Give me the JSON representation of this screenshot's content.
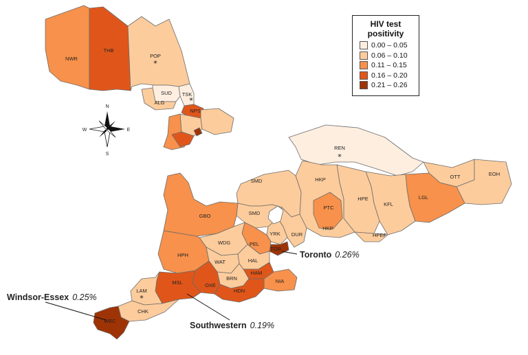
{
  "legend": {
    "title_line1": "HIV test",
    "title_line2": "positivity",
    "classes": [
      {
        "label": "0.00 – 0.05",
        "color": "#fdeee0"
      },
      {
        "label": "0.06 – 0.10",
        "color": "#fdcc9c"
      },
      {
        "label": "0.11 – 0.15",
        "color": "#f7914b"
      },
      {
        "label": "0.16 – 0.20",
        "color": "#e0561a"
      },
      {
        "label": "0.21 – 0.26",
        "color": "#9e3306"
      }
    ]
  },
  "compass": {
    "n": "N",
    "s": "S",
    "e": "E",
    "w": "W",
    "icon": "compass-rose-icon"
  },
  "regions": [
    {
      "code": "NWR",
      "class": 2
    },
    {
      "code": "THB",
      "class": 3
    },
    {
      "code": "POP",
      "class": 1,
      "star": true
    },
    {
      "code": "SUD",
      "class": 0
    },
    {
      "code": "TSK",
      "class": 0,
      "star": true
    },
    {
      "code": "ALG",
      "class": 1
    },
    {
      "code": "NPS",
      "class": 3
    },
    {
      "code": "REN",
      "class": 0,
      "star": true
    },
    {
      "code": "OTT",
      "class": 1
    },
    {
      "code": "EOH",
      "class": 1
    },
    {
      "code": "LGL",
      "class": 2
    },
    {
      "code": "KFL",
      "class": 1
    },
    {
      "code": "HPE",
      "class": 1
    },
    {
      "code": "HPEF",
      "class": 1
    },
    {
      "code": "HKP",
      "class": 1
    },
    {
      "code": "PTC",
      "class": 2
    },
    {
      "code": "SMD",
      "class": 1
    },
    {
      "code": "GBO",
      "class": 2
    },
    {
      "code": "DUR",
      "class": 1
    },
    {
      "code": "YRK",
      "class": 1
    },
    {
      "code": "TOR",
      "class": 4
    },
    {
      "code": "PEL",
      "class": 2
    },
    {
      "code": "WDG",
      "class": 1
    },
    {
      "code": "HPH",
      "class": 2
    },
    {
      "code": "WAT",
      "class": 1
    },
    {
      "code": "HAL",
      "class": 1
    },
    {
      "code": "HAM",
      "class": 3
    },
    {
      "code": "BRN",
      "class": 1
    },
    {
      "code": "NIA",
      "class": 2
    },
    {
      "code": "HDN",
      "class": 3
    },
    {
      "code": "OXE",
      "class": 3
    },
    {
      "code": "MSL",
      "class": 3
    },
    {
      "code": "LAM",
      "class": 1,
      "star": true
    },
    {
      "code": "CHK",
      "class": 1
    },
    {
      "code": "WEC",
      "class": 4
    }
  ],
  "callouts": {
    "toronto": {
      "name": "Toronto",
      "value": "0.26%"
    },
    "windsor": {
      "name": "Windsor-Essex",
      "value": "0.25%"
    },
    "southwestern": {
      "name": "Southwestern",
      "value": "0.19%"
    }
  }
}
